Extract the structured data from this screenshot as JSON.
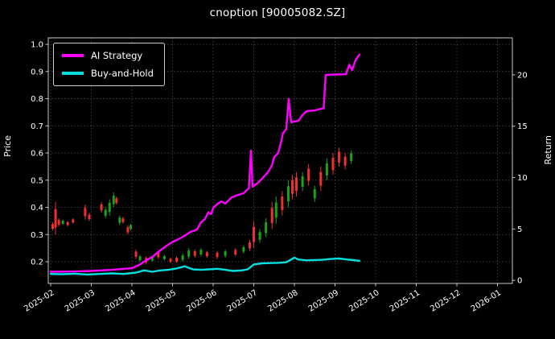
{
  "window": {
    "title": "cnoption [90005082.SZ]"
  },
  "colors": {
    "background": "#000000",
    "text": "#ffffff",
    "grid": "#4d4d4d",
    "spine": "#c8c8c8",
    "candle_up": "#1aa31a",
    "candle_down": "#ee3030"
  },
  "chart_data": {
    "type": "line",
    "title": "cnoption [90005082.SZ]",
    "x_unit": "months since 2025-02",
    "x_tick_labels": [
      "2025-02",
      "2025-03",
      "2025-04",
      "2025-05",
      "2025-06",
      "2025-07",
      "2025-08",
      "2025-09",
      "2025-10",
      "2025-11",
      "2025-12",
      "2026-01"
    ],
    "x_tick_positions": [
      0,
      1,
      2,
      3,
      4,
      5,
      6,
      7,
      8,
      9,
      10,
      11
    ],
    "left_axis": {
      "label": "Price",
      "ticks": [
        0.2,
        0.3,
        0.4,
        0.5,
        0.6,
        0.7,
        0.8,
        0.9,
        1.0
      ],
      "lim": [
        0.12,
        1.024
      ]
    },
    "right_axis": {
      "label": "Return",
      "ticks": [
        0,
        5,
        10,
        15,
        20
      ],
      "lim": [
        -0.3,
        23.6
      ]
    },
    "grid": true,
    "legend": {
      "position": "upper-left",
      "entries": [
        "AI Strategy",
        "Buy-and-Hold"
      ]
    },
    "series": [
      {
        "name": "AI Strategy",
        "color": "#ff00ff",
        "axis": "left",
        "x": [
          0,
          0.5,
          1.0,
          1.5,
          2.0,
          2.2,
          2.35,
          2.5,
          2.7,
          2.85,
          3.0,
          3.15,
          3.3,
          3.45,
          3.6,
          3.7,
          3.8,
          3.88,
          3.95,
          4.0,
          4.1,
          4.2,
          4.3,
          4.45,
          4.6,
          4.75,
          4.88,
          4.93,
          4.97,
          5.1,
          5.2,
          5.35,
          5.45,
          5.5,
          5.6,
          5.67,
          5.72,
          5.8,
          5.86,
          5.92,
          6.0,
          6.1,
          6.2,
          6.3,
          6.5,
          6.65,
          6.72,
          6.77,
          7.0,
          7.27,
          7.35,
          7.42,
          7.5,
          7.6
        ],
        "y": [
          0.163,
          0.164,
          0.166,
          0.17,
          0.176,
          0.19,
          0.205,
          0.218,
          0.242,
          0.258,
          0.273,
          0.283,
          0.296,
          0.31,
          0.318,
          0.345,
          0.357,
          0.382,
          0.375,
          0.398,
          0.412,
          0.422,
          0.414,
          0.436,
          0.445,
          0.452,
          0.47,
          0.609,
          0.476,
          0.49,
          0.505,
          0.53,
          0.555,
          0.585,
          0.6,
          0.638,
          0.674,
          0.688,
          0.799,
          0.713,
          0.716,
          0.719,
          0.74,
          0.754,
          0.757,
          0.763,
          0.765,
          0.888,
          0.889,
          0.89,
          0.925,
          0.905,
          0.94,
          0.963
        ]
      },
      {
        "name": "Buy-and-Hold",
        "color": "#00e0e0",
        "axis": "left",
        "x": [
          0,
          0.3,
          0.6,
          0.9,
          1.2,
          1.5,
          1.8,
          2.1,
          2.3,
          2.5,
          2.7,
          2.9,
          3.1,
          3.3,
          3.5,
          3.7,
          3.9,
          4.1,
          4.3,
          4.5,
          4.7,
          4.85,
          5.0,
          5.2,
          5.4,
          5.6,
          5.8,
          6.0,
          6.1,
          6.3,
          6.5,
          6.7,
          6.9,
          7.1,
          7.3,
          7.45,
          7.6
        ],
        "y": [
          0.155,
          0.154,
          0.156,
          0.153,
          0.155,
          0.157,
          0.155,
          0.16,
          0.168,
          0.163,
          0.168,
          0.17,
          0.175,
          0.183,
          0.172,
          0.17,
          0.172,
          0.174,
          0.17,
          0.166,
          0.168,
          0.172,
          0.19,
          0.194,
          0.195,
          0.196,
          0.198,
          0.215,
          0.208,
          0.205,
          0.206,
          0.207,
          0.21,
          0.212,
          0.208,
          0.206,
          0.203
        ]
      }
    ],
    "candles_format": [
      "x",
      "low",
      "high",
      "direction"
    ],
    "candles": [
      [
        0.05,
        0.315,
        0.345,
        "down"
      ],
      [
        0.12,
        0.3,
        0.42,
        "down"
      ],
      [
        0.2,
        0.33,
        0.36,
        "down"
      ],
      [
        0.3,
        0.335,
        0.355,
        "up"
      ],
      [
        0.42,
        0.33,
        0.35,
        "down"
      ],
      [
        0.55,
        0.34,
        0.36,
        "down"
      ],
      [
        0.85,
        0.355,
        0.41,
        "down"
      ],
      [
        0.95,
        0.35,
        0.38,
        "down"
      ],
      [
        1.25,
        0.38,
        0.42,
        "down"
      ],
      [
        1.35,
        0.36,
        0.4,
        "up"
      ],
      [
        1.45,
        0.37,
        0.43,
        "up"
      ],
      [
        1.55,
        0.4,
        0.455,
        "up"
      ],
      [
        1.62,
        0.41,
        0.44,
        "down"
      ],
      [
        1.7,
        0.335,
        0.37,
        "up"
      ],
      [
        1.78,
        0.34,
        0.365,
        "down"
      ],
      [
        1.9,
        0.3,
        0.335,
        "down"
      ],
      [
        1.97,
        0.315,
        0.34,
        "up"
      ],
      [
        2.1,
        0.21,
        0.245,
        "down"
      ],
      [
        2.2,
        0.2,
        0.225,
        "up"
      ],
      [
        2.35,
        0.19,
        0.22,
        "down"
      ],
      [
        2.5,
        0.2,
        0.22,
        "up"
      ],
      [
        2.65,
        0.21,
        0.24,
        "down"
      ],
      [
        2.8,
        0.205,
        0.225,
        "up"
      ],
      [
        2.95,
        0.195,
        0.215,
        "down"
      ],
      [
        3.1,
        0.195,
        0.22,
        "down"
      ],
      [
        3.25,
        0.2,
        0.23,
        "up"
      ],
      [
        3.4,
        0.21,
        0.25,
        "up"
      ],
      [
        3.55,
        0.215,
        0.245,
        "down"
      ],
      [
        3.7,
        0.22,
        0.25,
        "up"
      ],
      [
        3.85,
        0.215,
        0.24,
        "down"
      ],
      [
        4.1,
        0.21,
        0.24,
        "down"
      ],
      [
        4.3,
        0.215,
        0.245,
        "up"
      ],
      [
        4.55,
        0.22,
        0.25,
        "down"
      ],
      [
        4.75,
        0.23,
        0.26,
        "up"
      ],
      [
        4.9,
        0.24,
        0.28,
        "down"
      ],
      [
        5.0,
        0.25,
        0.35,
        "down"
      ],
      [
        5.15,
        0.27,
        0.32,
        "up"
      ],
      [
        5.3,
        0.29,
        0.36,
        "up"
      ],
      [
        5.45,
        0.32,
        0.42,
        "down"
      ],
      [
        5.55,
        0.34,
        0.44,
        "up"
      ],
      [
        5.7,
        0.37,
        0.46,
        "down"
      ],
      [
        5.85,
        0.4,
        0.5,
        "up"
      ],
      [
        5.95,
        0.43,
        0.52,
        "down"
      ],
      [
        6.05,
        0.44,
        0.53,
        "down"
      ],
      [
        6.2,
        0.46,
        0.53,
        "up"
      ],
      [
        6.35,
        0.48,
        0.56,
        "down"
      ],
      [
        6.5,
        0.42,
        0.48,
        "up"
      ],
      [
        6.65,
        0.46,
        0.55,
        "down"
      ],
      [
        6.8,
        0.5,
        0.58,
        "up"
      ],
      [
        6.95,
        0.52,
        0.6,
        "down"
      ],
      [
        7.1,
        0.55,
        0.62,
        "down"
      ],
      [
        7.25,
        0.54,
        0.6,
        "down"
      ],
      [
        7.4,
        0.56,
        0.61,
        "up"
      ]
    ]
  }
}
